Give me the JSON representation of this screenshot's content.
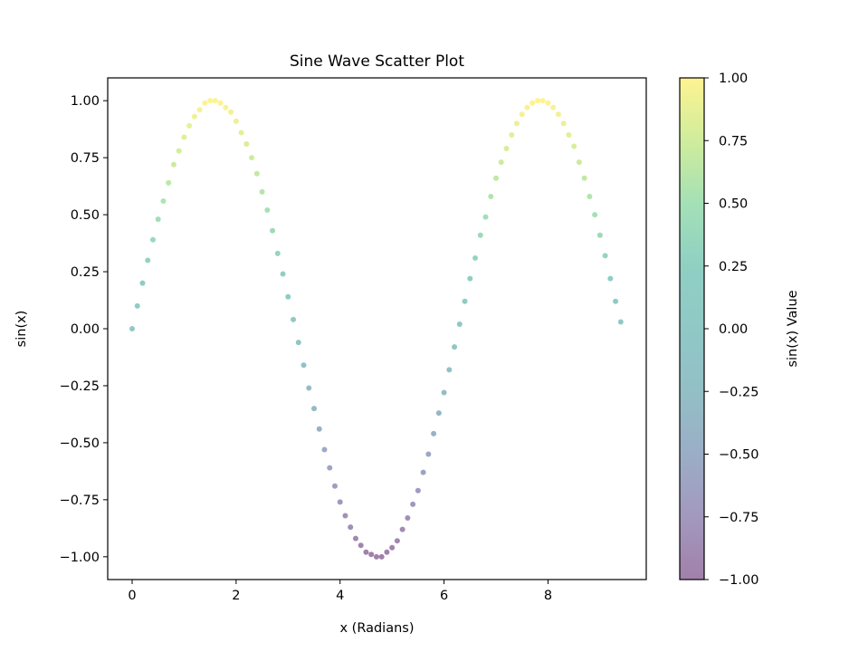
{
  "chart_data": {
    "type": "scatter",
    "title": "Sine Wave Scatter Plot",
    "xlabel": "x (Radians)",
    "ylabel": "sin(x)",
    "xlim": [
      -0.47,
      9.89
    ],
    "ylim": [
      -1.1,
      1.1
    ],
    "x_ticks": [
      0,
      2,
      4,
      6,
      8
    ],
    "x_tick_labels": [
      "0",
      "2",
      "4",
      "6",
      "8"
    ],
    "y_ticks": [
      -1.0,
      -0.75,
      -0.5,
      -0.25,
      0.0,
      0.25,
      0.5,
      0.75,
      1.0
    ],
    "y_tick_labels": [
      "−1.00",
      "−0.75",
      "−0.50",
      "−0.25",
      "0.00",
      "0.25",
      "0.50",
      "0.75",
      "1.00"
    ],
    "grid": false,
    "colormap": "viridis",
    "alpha": 0.5,
    "colorbar": {
      "label": "sin(x) Value",
      "range": [
        -1.0,
        1.0
      ],
      "ticks": [
        -1.0,
        -0.75,
        -0.5,
        -0.25,
        0.0,
        0.25,
        0.5,
        0.75,
        1.0
      ],
      "tick_labels": [
        "−1.00",
        "−0.75",
        "−0.50",
        "−0.25",
        "0.00",
        "0.25",
        "0.50",
        "0.75",
        "1.00"
      ]
    },
    "series": [
      {
        "x": [
          0.0,
          0.1,
          0.2,
          0.3,
          0.4,
          0.5,
          0.6,
          0.7,
          0.8,
          0.9,
          1.0,
          1.1,
          1.2,
          1.3,
          1.4,
          1.5,
          1.6,
          1.7,
          1.8,
          1.9,
          2.0,
          2.1,
          2.2,
          2.3,
          2.4,
          2.5,
          2.6,
          2.7,
          2.8,
          2.9,
          3.0,
          3.1,
          3.2,
          3.3,
          3.4,
          3.5,
          3.6,
          3.7,
          3.8,
          3.9,
          4.0,
          4.1,
          4.2,
          4.3,
          4.4,
          4.5,
          4.6,
          4.7,
          4.8,
          4.9,
          5.0,
          5.1,
          5.2,
          5.3,
          5.4,
          5.5,
          5.6,
          5.7,
          5.8,
          5.9,
          6.0,
          6.1,
          6.2,
          6.3,
          6.4,
          6.5,
          6.6,
          6.7,
          6.8,
          6.9,
          7.0,
          7.1,
          7.2,
          7.3,
          7.4,
          7.5,
          7.6,
          7.7,
          7.8,
          7.9,
          8.0,
          8.1,
          8.2,
          8.3,
          8.4,
          8.5,
          8.6,
          8.7,
          8.8,
          8.9,
          9.0,
          9.1,
          9.2,
          9.3,
          9.4
        ],
        "y": [
          0.0,
          0.1,
          0.2,
          0.3,
          0.39,
          0.48,
          0.56,
          0.64,
          0.72,
          0.78,
          0.84,
          0.89,
          0.93,
          0.96,
          0.99,
          1.0,
          1.0,
          0.99,
          0.97,
          0.95,
          0.91,
          0.86,
          0.81,
          0.75,
          0.68,
          0.6,
          0.52,
          0.43,
          0.33,
          0.24,
          0.14,
          0.04,
          -0.06,
          -0.16,
          -0.26,
          -0.35,
          -0.44,
          -0.53,
          -0.61,
          -0.69,
          -0.76,
          -0.82,
          -0.87,
          -0.92,
          -0.95,
          -0.98,
          -0.99,
          -1.0,
          -1.0,
          -0.98,
          -0.96,
          -0.93,
          -0.88,
          -0.83,
          -0.77,
          -0.71,
          -0.63,
          -0.55,
          -0.46,
          -0.37,
          -0.28,
          -0.18,
          -0.08,
          0.02,
          0.12,
          0.22,
          0.31,
          0.41,
          0.49,
          0.58,
          0.66,
          0.73,
          0.79,
          0.85,
          0.9,
          0.94,
          0.97,
          0.99,
          1.0,
          1.0,
          0.99,
          0.97,
          0.94,
          0.9,
          0.85,
          0.8,
          0.73,
          0.66,
          0.58,
          0.5,
          0.41,
          0.32,
          0.22,
          0.12,
          0.03
        ]
      }
    ]
  }
}
